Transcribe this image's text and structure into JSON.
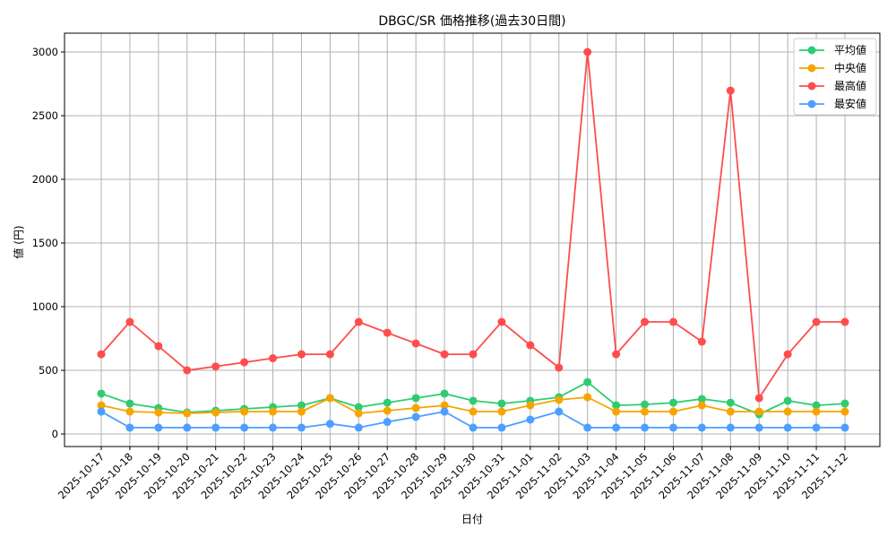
{
  "chart_data": {
    "type": "line",
    "title": "DBGC/SR 価格推移(過去30日間)",
    "xlabel": "日付",
    "ylabel": "値 (円)",
    "ylim": [
      -100,
      3150
    ],
    "yticks": [
      0,
      500,
      1000,
      1500,
      2000,
      2500,
      3000
    ],
    "grid": true,
    "legend_position": "upper right",
    "categories": [
      "2025-10-17",
      "2025-10-18",
      "2025-10-19",
      "2025-10-20",
      "2025-10-21",
      "2025-10-22",
      "2025-10-23",
      "2025-10-24",
      "2025-10-25",
      "2025-10-26",
      "2025-10-27",
      "2025-10-28",
      "2025-10-29",
      "2025-10-30",
      "2025-10-31",
      "2025-11-01",
      "2025-11-02",
      "2025-11-03",
      "2025-11-04",
      "2025-11-05",
      "2025-11-06",
      "2025-11-07",
      "2025-11-08",
      "2025-11-09",
      "2025-11-10",
      "2025-11-11",
      "2025-11-12"
    ],
    "series": [
      {
        "name": "平均値",
        "color": "#2ecc71",
        "values": [
          317,
          239,
          204,
          169,
          183,
          197,
          211,
          225,
          282,
          211,
          246,
          282,
          317,
          261,
          239,
          261,
          289,
          408,
          225,
          232,
          246,
          275,
          246,
          155,
          261,
          225,
          239
        ]
      },
      {
        "name": "中央値",
        "color": "#f5a500",
        "values": [
          225,
          176,
          169,
          162,
          169,
          176,
          176,
          176,
          282,
          162,
          183,
          204,
          225,
          176,
          176,
          225,
          268,
          289,
          176,
          176,
          176,
          225,
          176,
          176,
          176,
          176,
          176
        ]
      },
      {
        "name": "最高値",
        "color": "#ff4d4d",
        "values": [
          626,
          880,
          690,
          500,
          530,
          563,
          595,
          626,
          626,
          880,
          795,
          711,
          626,
          626,
          880,
          697,
          521,
          3000,
          626,
          880,
          880,
          725,
          2697,
          282,
          626,
          880,
          880
        ]
      },
      {
        "name": "最安値",
        "color": "#4d9fff",
        "values": [
          176,
          50,
          50,
          50,
          50,
          50,
          50,
          50,
          80,
          50,
          95,
          134,
          176,
          50,
          50,
          113,
          176,
          50,
          50,
          50,
          50,
          50,
          50,
          50,
          50,
          50,
          50
        ]
      }
    ]
  },
  "labels": {
    "title": "DBGC/SR 価格推移(過去30日間)",
    "xlabel": "日付",
    "ylabel": "値 (円)",
    "legend": [
      "平均値",
      "中央値",
      "最高値",
      "最安値"
    ]
  }
}
